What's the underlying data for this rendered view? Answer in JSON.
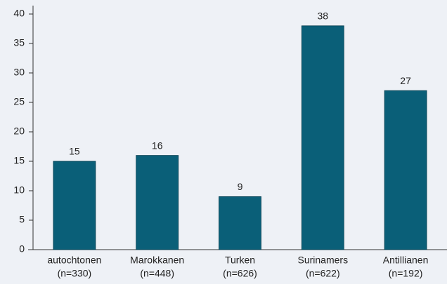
{
  "chart_data": {
    "type": "bar",
    "categories": [
      [
        "autochtonen",
        "(n=330)"
      ],
      [
        "Marokkanen",
        "(n=448)"
      ],
      [
        "Turken",
        "(n=626)"
      ],
      [
        "Surinamers",
        "(n=622)"
      ],
      [
        "Antillianen",
        "(n=192)"
      ]
    ],
    "values": [
      15,
      16,
      9,
      38,
      27
    ],
    "color": "#0a5f78",
    "ylim": [
      0,
      40
    ],
    "yticks": [
      0,
      5,
      10,
      15,
      20,
      25,
      30,
      35,
      40
    ],
    "grid": false
  }
}
